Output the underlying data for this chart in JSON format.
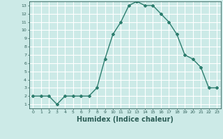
{
  "x": [
    0,
    1,
    2,
    3,
    4,
    5,
    6,
    7,
    8,
    9,
    10,
    11,
    12,
    13,
    14,
    15,
    16,
    17,
    18,
    19,
    20,
    21,
    22,
    23
  ],
  "y": [
    2,
    2,
    2,
    1,
    2,
    2,
    2,
    2,
    3,
    6.5,
    9.5,
    11,
    13,
    13.5,
    13,
    13,
    12,
    11,
    9.5,
    7,
    6.5,
    5.5,
    3,
    3
  ],
  "line_color": "#2d7d6e",
  "marker": "D",
  "marker_size": 2,
  "bg_color": "#cceae7",
  "grid_color": "#ffffff",
  "xlabel": "Humidex (Indice chaleur)",
  "xlabel_fontsize": 7,
  "xlabel_color": "#2d5e57",
  "tick_color": "#2d5e57",
  "xlim": [
    -0.5,
    23.5
  ],
  "ylim": [
    0.5,
    13.5
  ],
  "yticks": [
    1,
    2,
    3,
    4,
    5,
    6,
    7,
    8,
    9,
    10,
    11,
    12,
    13
  ],
  "xticks": [
    0,
    1,
    2,
    3,
    4,
    5,
    6,
    7,
    8,
    9,
    10,
    11,
    12,
    13,
    14,
    15,
    16,
    17,
    18,
    19,
    20,
    21,
    22,
    23
  ]
}
